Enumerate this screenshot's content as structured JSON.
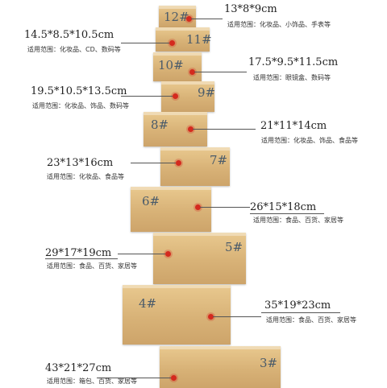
{
  "boxes": [
    {
      "id": "12",
      "label": "12#",
      "dims": "13*8*9cm",
      "use": "适用范围：化妆品、小饰品、手表等"
    },
    {
      "id": "11",
      "label": "11#",
      "dims": "14.5*8.5*10.5cm",
      "use": "适用范围：化妆品、CD、数码等"
    },
    {
      "id": "10",
      "label": "10#",
      "dims": "17.5*9.5*11.5cm",
      "use": "适用范围：眼镜盒、数码等"
    },
    {
      "id": "9",
      "label": "9#",
      "dims": "19.5*10.5*13.5cm",
      "use": "适用范围：化妆品、饰品、数码等"
    },
    {
      "id": "8",
      "label": "8#",
      "dims": "21*11*14cm",
      "use": "适用范围：化妆品、饰品、食品等"
    },
    {
      "id": "7",
      "label": "7#",
      "dims": "23*13*16cm",
      "use": "适用范围：化妆品、食品等"
    },
    {
      "id": "6",
      "label": "6#",
      "dims": "26*15*18cm",
      "use": "适用范围：食品、百货、家居等"
    },
    {
      "id": "5",
      "label": "5#",
      "dims": "29*17*19cm",
      "use": "适用范围：食品、百货、家居等"
    },
    {
      "id": "4",
      "label": "4#",
      "dims": "35*19*23cm",
      "use": "适用范围：食品、百货、家居等"
    },
    {
      "id": "3",
      "label": "3#",
      "dims": "43*21*27cm",
      "use": "适用范围：箱包、百货、家居等"
    }
  ],
  "colors": {
    "marker": "#d42a1e",
    "box": "#d8b277",
    "text": "#222222"
  }
}
